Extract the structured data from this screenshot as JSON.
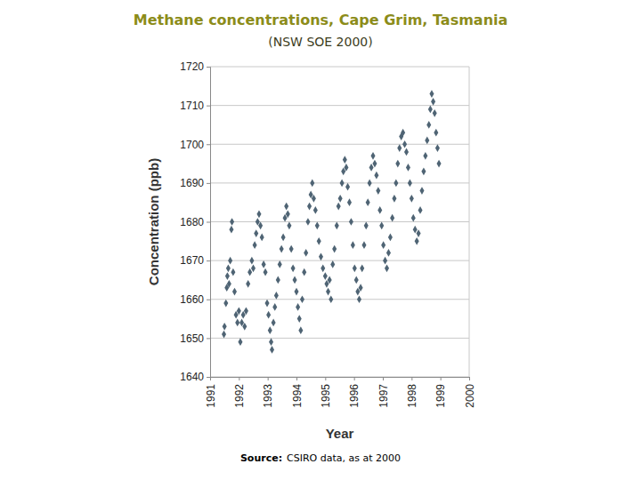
{
  "chart_data": {
    "type": "scatter",
    "title": "Methane concentrations, Cape Grim, Tasmania",
    "subtitle": "(NSW SOE 2000)",
    "x_label": "Year",
    "y_label": "Concentration (ppb)",
    "source": {
      "label": "Source:",
      "text": "CSIRO data, as at 2000"
    },
    "color": "#4f6474",
    "marker": "diamond",
    "grid": "y",
    "xlim": [
      1991,
      2000
    ],
    "xticks": [
      1991,
      1992,
      1993,
      1994,
      1995,
      1996,
      1997,
      1998,
      1999,
      2000
    ],
    "ylim": [
      1640,
      1720
    ],
    "yticks": [
      1640,
      1650,
      1660,
      1670,
      1680,
      1690,
      1700,
      1710,
      1720
    ],
    "x": [
      1991.48,
      1991.5,
      1991.55,
      1991.58,
      1991.6,
      1991.63,
      1991.66,
      1991.7,
      1991.74,
      1991.76,
      1991.8,
      1991.85,
      1991.9,
      1991.95,
      1992.0,
      1992.05,
      1992.1,
      1992.15,
      1992.2,
      1992.25,
      1992.32,
      1992.38,
      1992.45,
      1992.5,
      1992.55,
      1992.6,
      1992.65,
      1992.7,
      1992.75,
      1992.8,
      1992.86,
      1992.92,
      1992.98,
      1993.03,
      1993.08,
      1993.12,
      1993.15,
      1993.2,
      1993.25,
      1993.3,
      1993.36,
      1993.42,
      1993.48,
      1993.54,
      1993.6,
      1993.65,
      1993.7,
      1993.75,
      1993.82,
      1993.88,
      1993.94,
      1994.0,
      1994.05,
      1994.1,
      1994.15,
      1994.2,
      1994.27,
      1994.33,
      1994.4,
      1994.45,
      1994.5,
      1994.55,
      1994.6,
      1994.66,
      1994.72,
      1994.78,
      1994.85,
      1994.92,
      1995.0,
      1995.05,
      1995.1,
      1995.15,
      1995.2,
      1995.26,
      1995.32,
      1995.4,
      1995.46,
      1995.52,
      1995.58,
      1995.63,
      1995.68,
      1995.73,
      1995.78,
      1995.84,
      1995.9,
      1995.96,
      1996.02,
      1996.08,
      1996.13,
      1996.18,
      1996.23,
      1996.28,
      1996.35,
      1996.42,
      1996.48,
      1996.54,
      1996.6,
      1996.66,
      1996.72,
      1996.78,
      1996.84,
      1996.9,
      1996.96,
      1997.02,
      1997.08,
      1997.14,
      1997.2,
      1997.26,
      1997.33,
      1997.4,
      1997.46,
      1997.52,
      1997.58,
      1997.64,
      1997.7,
      1997.76,
      1997.82,
      1997.88,
      1997.94,
      1998.0,
      1998.06,
      1998.12,
      1998.18,
      1998.24,
      1998.3,
      1998.36,
      1998.42,
      1998.48,
      1998.54,
      1998.6,
      1998.65,
      1998.7,
      1998.75,
      1998.8,
      1998.85,
      1998.9,
      1998.95
    ],
    "values": [
      1651,
      1653,
      1659,
      1663,
      1666,
      1668,
      1664,
      1670,
      1678,
      1680,
      1667,
      1662,
      1656,
      1654,
      1657,
      1649,
      1654,
      1656,
      1653,
      1657,
      1664,
      1667,
      1670,
      1668,
      1674,
      1677,
      1680,
      1682,
      1679,
      1676,
      1669,
      1667,
      1659,
      1656,
      1652,
      1649,
      1647,
      1654,
      1658,
      1661,
      1665,
      1669,
      1673,
      1676,
      1681,
      1684,
      1682,
      1679,
      1673,
      1668,
      1665,
      1662,
      1658,
      1655,
      1652,
      1660,
      1667,
      1672,
      1680,
      1684,
      1687,
      1690,
      1686,
      1683,
      1679,
      1675,
      1671,
      1668,
      1666,
      1664,
      1662,
      1665,
      1660,
      1669,
      1673,
      1679,
      1684,
      1686,
      1690,
      1693,
      1696,
      1694,
      1689,
      1685,
      1680,
      1674,
      1668,
      1665,
      1662,
      1660,
      1663,
      1668,
      1674,
      1679,
      1685,
      1690,
      1694,
      1697,
      1695,
      1692,
      1688,
      1683,
      1679,
      1674,
      1670,
      1668,
      1672,
      1676,
      1681,
      1686,
      1690,
      1695,
      1699,
      1702,
      1703,
      1700,
      1698,
      1694,
      1690,
      1686,
      1681,
      1678,
      1675,
      1677,
      1683,
      1688,
      1693,
      1697,
      1701,
      1705,
      1709,
      1713,
      1711,
      1708,
      1703,
      1699,
      1695
    ]
  }
}
